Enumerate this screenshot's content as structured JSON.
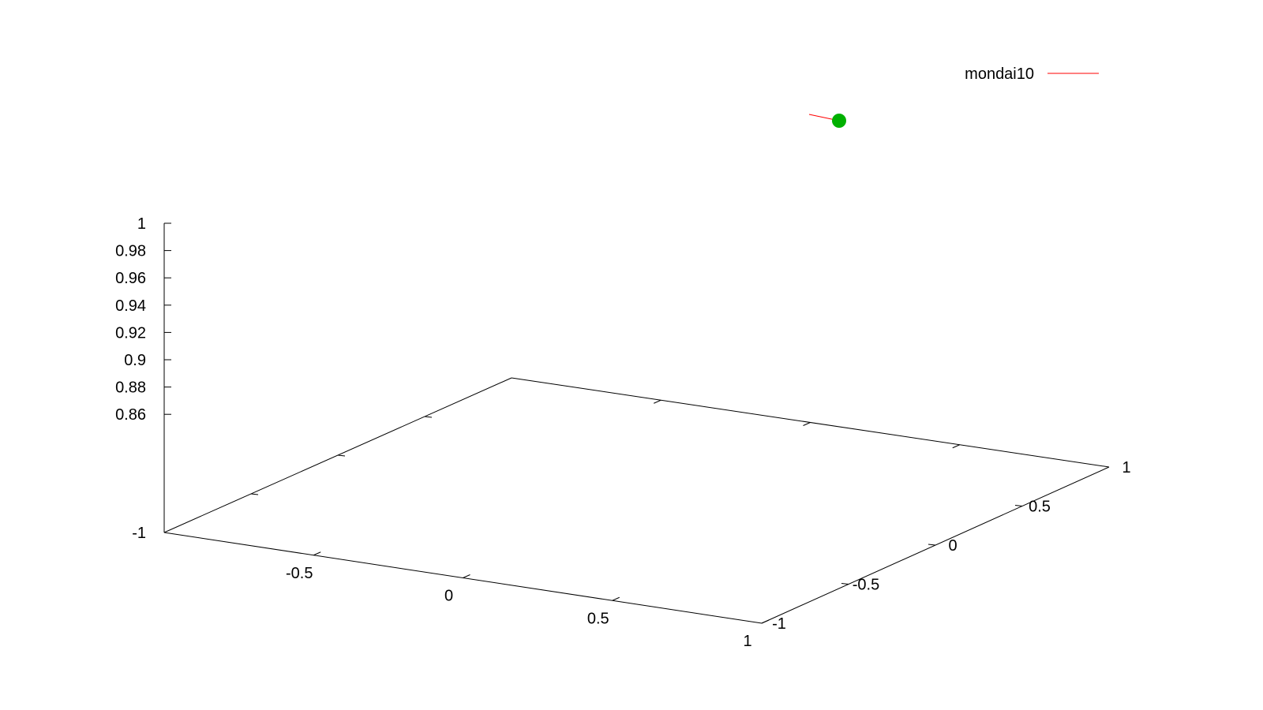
{
  "chart_data": {
    "type": "line",
    "title": "",
    "xlabel": "",
    "ylabel": "",
    "zlabel": "",
    "grid": false,
    "legend_position": "top-right",
    "x_ticks": [
      "-0.5",
      "0",
      "0.5",
      "1"
    ],
    "x_tick_values": [
      -0.5,
      0,
      0.5,
      1
    ],
    "y_ticks": [
      "-1",
      "-0.5",
      "0",
      "0.5",
      "1"
    ],
    "y_tick_values": [
      -1,
      -0.5,
      0,
      0.5,
      1
    ],
    "z_ticks": [
      "-1",
      "0.86",
      "0.88",
      "0.9",
      "0.92",
      "0.94",
      "0.96",
      "0.98",
      "1"
    ],
    "xlim": [
      -1,
      1
    ],
    "ylim": [
      -1,
      1
    ],
    "zlim_labels": [
      "-1",
      "1"
    ],
    "series": [
      {
        "name": "mondai10",
        "line_color": "#ff0000",
        "marker_color": "#00b000"
      }
    ]
  }
}
